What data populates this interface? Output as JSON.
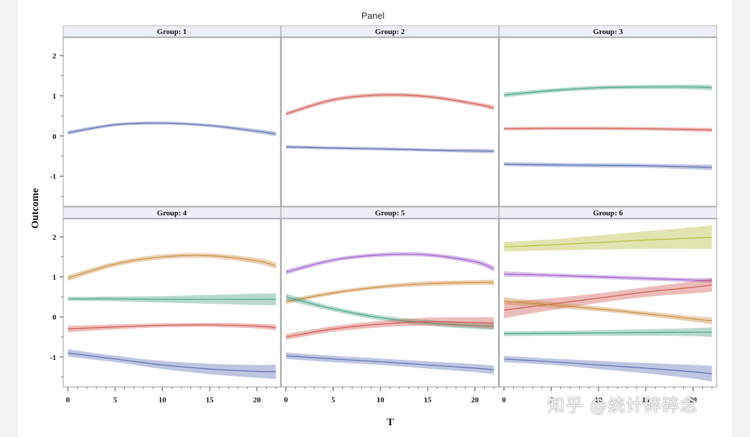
{
  "chart_data": {
    "type": "line",
    "title": "Panel",
    "xlabel": "T",
    "ylabel": "Outcome",
    "xlim": [
      -0.5,
      22.5
    ],
    "ylim": [
      -1.75,
      2.45
    ],
    "xticks": [
      "0",
      "5",
      "10",
      "15",
      "20"
    ],
    "yticks": [
      "-1",
      "0",
      "1",
      "2"
    ],
    "series_colors": {
      "blue": "#5566b0",
      "red": "#d0504a",
      "green": "#3f9e7c",
      "orange": "#c9873a",
      "purple": "#9a55c8",
      "olive": "#b4b830"
    },
    "panels": [
      {
        "label": "Group: 1",
        "series": [
          {
            "color": "blue",
            "x": [
              0,
              5,
              10,
              15,
              20,
              22
            ],
            "y": [
              0.08,
              0.28,
              0.32,
              0.26,
              0.12,
              0.05
            ],
            "band": [
              0.05,
              0.04,
              0.04,
              0.04,
              0.05,
              0.06
            ]
          }
        ]
      },
      {
        "label": "Group: 2",
        "series": [
          {
            "color": "red",
            "x": [
              0,
              5,
              10,
              15,
              20,
              22
            ],
            "y": [
              0.55,
              0.9,
              1.02,
              0.98,
              0.8,
              0.7
            ],
            "band": [
              0.05,
              0.05,
              0.05,
              0.05,
              0.05,
              0.06
            ]
          },
          {
            "color": "blue",
            "x": [
              0,
              5,
              10,
              15,
              20,
              22
            ],
            "y": [
              -0.27,
              -0.3,
              -0.32,
              -0.35,
              -0.37,
              -0.38
            ],
            "band": [
              0.04,
              0.04,
              0.04,
              0.04,
              0.05,
              0.05
            ]
          }
        ]
      },
      {
        "label": "Group: 3",
        "series": [
          {
            "color": "green",
            "x": [
              0,
              5,
              10,
              15,
              20,
              22
            ],
            "y": [
              1.02,
              1.13,
              1.2,
              1.22,
              1.22,
              1.2
            ],
            "band": [
              0.06,
              0.05,
              0.05,
              0.05,
              0.06,
              0.07
            ]
          },
          {
            "color": "red",
            "x": [
              0,
              5,
              10,
              15,
              20,
              22
            ],
            "y": [
              0.18,
              0.19,
              0.19,
              0.18,
              0.16,
              0.15
            ],
            "band": [
              0.04,
              0.04,
              0.04,
              0.04,
              0.05,
              0.05
            ]
          },
          {
            "color": "blue",
            "x": [
              0,
              5,
              10,
              15,
              20,
              22
            ],
            "y": [
              -0.7,
              -0.72,
              -0.73,
              -0.74,
              -0.77,
              -0.78
            ],
            "band": [
              0.05,
              0.05,
              0.05,
              0.05,
              0.06,
              0.07
            ]
          }
        ]
      },
      {
        "label": "Group: 4",
        "series": [
          {
            "color": "orange",
            "x": [
              0,
              5,
              10,
              15,
              20,
              22
            ],
            "y": [
              0.97,
              1.32,
              1.5,
              1.53,
              1.4,
              1.28
            ],
            "band": [
              0.07,
              0.06,
              0.06,
              0.06,
              0.07,
              0.08
            ]
          },
          {
            "color": "green",
            "x": [
              0,
              5,
              10,
              15,
              20,
              22
            ],
            "y": [
              0.45,
              0.45,
              0.44,
              0.44,
              0.44,
              0.44
            ],
            "band": [
              0.05,
              0.06,
              0.08,
              0.11,
              0.14,
              0.15
            ]
          },
          {
            "color": "red",
            "x": [
              0,
              5,
              10,
              15,
              20,
              22
            ],
            "y": [
              -0.3,
              -0.25,
              -0.21,
              -0.2,
              -0.23,
              -0.27
            ],
            "band": [
              0.08,
              0.06,
              0.05,
              0.05,
              0.06,
              0.07
            ]
          },
          {
            "color": "blue",
            "x": [
              0,
              5,
              10,
              15,
              20,
              22
            ],
            "y": [
              -0.9,
              -1.05,
              -1.2,
              -1.3,
              -1.36,
              -1.37
            ],
            "band": [
              0.09,
              0.08,
              0.1,
              0.13,
              0.16,
              0.18
            ]
          }
        ]
      },
      {
        "label": "Group: 5",
        "series": [
          {
            "color": "purple",
            "x": [
              0,
              5,
              10,
              15,
              20,
              22
            ],
            "y": [
              1.12,
              1.42,
              1.55,
              1.55,
              1.38,
              1.2
            ],
            "band": [
              0.06,
              0.05,
              0.05,
              0.05,
              0.06,
              0.07
            ]
          },
          {
            "color": "orange",
            "x": [
              0,
              5,
              10,
              15,
              20,
              22
            ],
            "y": [
              0.38,
              0.6,
              0.75,
              0.83,
              0.86,
              0.86
            ],
            "band": [
              0.06,
              0.05,
              0.05,
              0.06,
              0.06,
              0.07
            ]
          },
          {
            "color": "green",
            "x": [
              0,
              5,
              10,
              15,
              20,
              22
            ],
            "y": [
              0.5,
              0.2,
              -0.02,
              -0.15,
              -0.22,
              -0.23
            ],
            "band": [
              0.08,
              0.06,
              0.06,
              0.07,
              0.08,
              0.09
            ]
          },
          {
            "color": "red",
            "x": [
              0,
              5,
              10,
              15,
              20,
              22
            ],
            "y": [
              -0.5,
              -0.3,
              -0.18,
              -0.12,
              -0.14,
              -0.15
            ],
            "band": [
              0.07,
              0.07,
              0.08,
              0.1,
              0.13,
              0.15
            ]
          },
          {
            "color": "blue",
            "x": [
              0,
              5,
              10,
              15,
              20,
              22
            ],
            "y": [
              -0.97,
              -1.05,
              -1.12,
              -1.2,
              -1.28,
              -1.32
            ],
            "band": [
              0.08,
              0.08,
              0.08,
              0.09,
              0.1,
              0.11
            ]
          }
        ]
      },
      {
        "label": "Group: 6",
        "series": [
          {
            "color": "olive",
            "x": [
              0,
              5,
              10,
              15,
              20,
              22
            ],
            "y": [
              1.75,
              1.8,
              1.86,
              1.92,
              1.97,
              1.99
            ],
            "band": [
              0.12,
              0.14,
              0.18,
              0.22,
              0.27,
              0.3
            ]
          },
          {
            "color": "purple",
            "x": [
              0,
              5,
              10,
              15,
              20,
              22
            ],
            "y": [
              1.07,
              1.04,
              1.0,
              0.96,
              0.92,
              0.91
            ],
            "band": [
              0.07,
              0.05,
              0.05,
              0.05,
              0.05,
              0.06
            ]
          },
          {
            "color": "red",
            "x": [
              0,
              5,
              10,
              15,
              20,
              22
            ],
            "y": [
              0.17,
              0.32,
              0.47,
              0.62,
              0.74,
              0.8
            ],
            "band": [
              0.2,
              0.15,
              0.12,
              0.12,
              0.15,
              0.17
            ]
          },
          {
            "color": "orange",
            "x": [
              0,
              5,
              10,
              15,
              20,
              22
            ],
            "y": [
              0.4,
              0.3,
              0.2,
              0.08,
              -0.05,
              -0.1
            ],
            "band": [
              0.09,
              0.07,
              0.06,
              0.06,
              0.07,
              0.09
            ]
          },
          {
            "color": "green",
            "x": [
              0,
              5,
              10,
              15,
              20,
              22
            ],
            "y": [
              -0.42,
              -0.41,
              -0.4,
              -0.39,
              -0.38,
              -0.38
            ],
            "band": [
              0.06,
              0.06,
              0.07,
              0.08,
              0.1,
              0.12
            ]
          },
          {
            "color": "blue",
            "x": [
              0,
              5,
              10,
              15,
              20,
              22
            ],
            "y": [
              -1.05,
              -1.12,
              -1.2,
              -1.28,
              -1.37,
              -1.42
            ],
            "band": [
              0.08,
              0.08,
              0.1,
              0.13,
              0.17,
              0.2
            ]
          }
        ]
      }
    ]
  },
  "watermark": "知乎 @统计碎碎念"
}
